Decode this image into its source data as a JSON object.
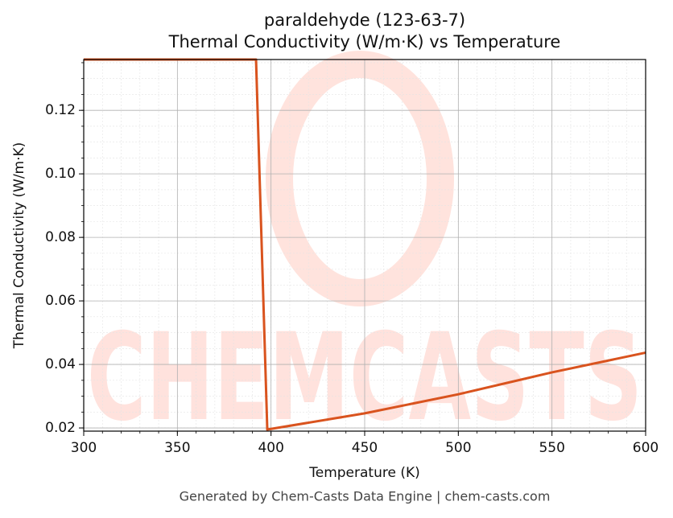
{
  "chart_data": {
    "type": "line",
    "title": "paraldehyde (123-63-7)",
    "subtitle": "Thermal Conductivity (W/m·K) vs Temperature",
    "x_label": "Temperature (K)",
    "y_label": "Thermal Conductivity (W/m·K)",
    "footer": "Generated by Chem-Casts Data Engine | chem-casts.com",
    "watermark": "CHEMCASTS",
    "x": [
      300,
      392,
      398,
      450,
      500,
      550,
      600
    ],
    "series": [
      {
        "name": "paraldehyde",
        "color": "#d9531e",
        "values": [
          0.136,
          0.136,
          0.0195,
          0.0246,
          0.0306,
          0.0375,
          0.0437
        ]
      }
    ],
    "xlim": [
      300,
      600
    ],
    "xticks": [
      300,
      350,
      400,
      450,
      500,
      550,
      600
    ],
    "ylim": [
      0.019,
      0.136
    ],
    "yticks": [
      {
        "value": 0.02,
        "label": "0.02"
      },
      {
        "value": 0.04,
        "label": "0.04"
      },
      {
        "value": 0.06,
        "label": "0.06"
      },
      {
        "value": 0.08,
        "label": "0.08"
      },
      {
        "value": 0.1,
        "label": "0.10"
      },
      {
        "value": 0.12,
        "label": "0.12"
      }
    ],
    "grid": true,
    "minor_grid": true
  }
}
